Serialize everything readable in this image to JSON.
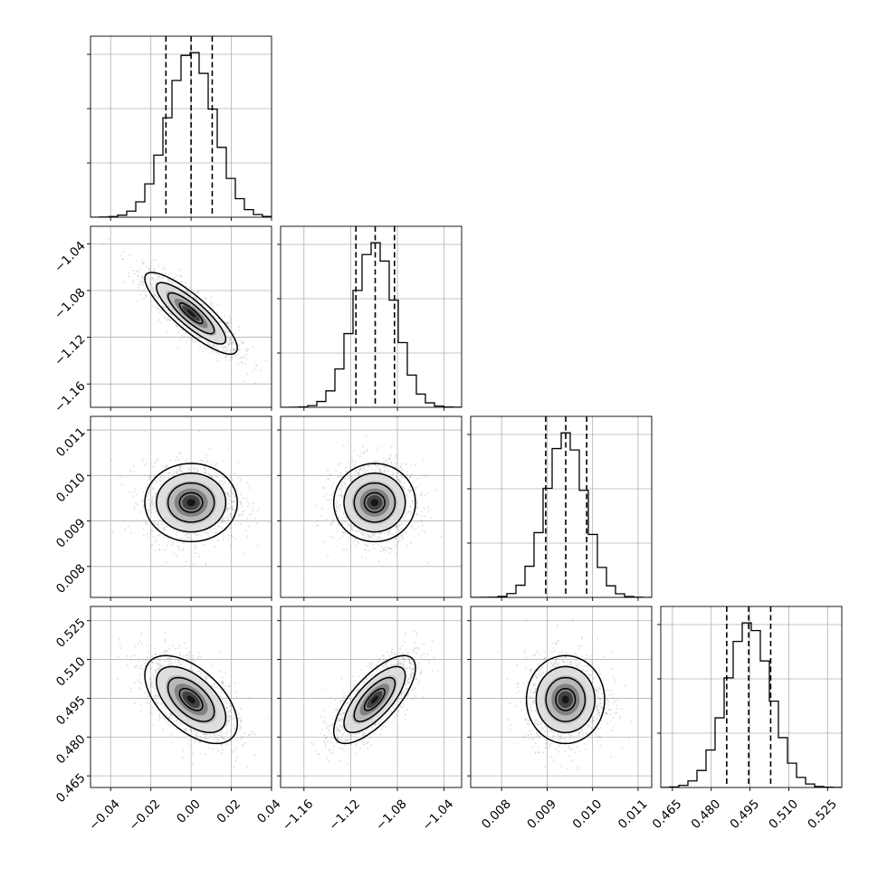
{
  "chart_data": {
    "type": "corner",
    "parameters": [
      {
        "index": 0,
        "range": [
          -0.05,
          0.04
        ],
        "ticks": [
          -0.04,
          -0.02,
          0.0,
          0.02,
          0.04
        ],
        "tick_labels": [
          "−0.04",
          "−0.02",
          "0.00",
          "0.02",
          "0.04"
        ],
        "mean": 0.0,
        "std": 0.0115,
        "quantiles": [
          -0.0125,
          0.0,
          0.0105
        ]
      },
      {
        "index": 1,
        "range": [
          -1.18,
          -1.025
        ],
        "ticks": [
          -1.16,
          -1.12,
          -1.08,
          -1.04
        ],
        "tick_labels": [
          "−1.16",
          "−1.12",
          "−1.08",
          "−1.04"
        ],
        "mean": -1.0995,
        "std": 0.0175,
        "quantiles": [
          -1.1155,
          -1.099,
          -1.0825
        ]
      },
      {
        "index": 2,
        "range": [
          0.00732,
          0.0113
        ],
        "ticks": [
          0.008,
          0.009,
          0.01,
          0.011
        ],
        "tick_labels": [
          "0.008",
          "0.009",
          "0.010",
          "0.011"
        ],
        "mean": 0.009405,
        "std": 0.00043,
        "quantiles": [
          0.00897,
          0.00941,
          0.00987
        ]
      },
      {
        "index": 3,
        "range": [
          0.4605,
          0.5305
        ],
        "ticks": [
          0.465,
          0.48,
          0.495,
          0.51,
          0.525
        ],
        "tick_labels": [
          "0.465",
          "0.480",
          "0.495",
          "0.510",
          "0.525"
        ],
        "mean": 0.4945,
        "std": 0.0085,
        "quantiles": [
          0.486,
          0.4945,
          0.503
        ]
      }
    ],
    "correlations": [
      {
        "pair": [
          0,
          1
        ],
        "rho": -0.85
      },
      {
        "pair": [
          0,
          2
        ],
        "rho": 0.0
      },
      {
        "pair": [
          1,
          2
        ],
        "rho": 0.0
      },
      {
        "pair": [
          0,
          3
        ],
        "rho": -0.55
      },
      {
        "pair": [
          1,
          3
        ],
        "rho": 0.72
      },
      {
        "pair": [
          2,
          3
        ],
        "rho": 0.0
      }
    ],
    "histogram_bins": 20,
    "contour_levels_sigma": [
      0.5,
      1.0,
      1.5,
      2.0
    ],
    "grid": true,
    "quantile_lines": "dashed"
  }
}
